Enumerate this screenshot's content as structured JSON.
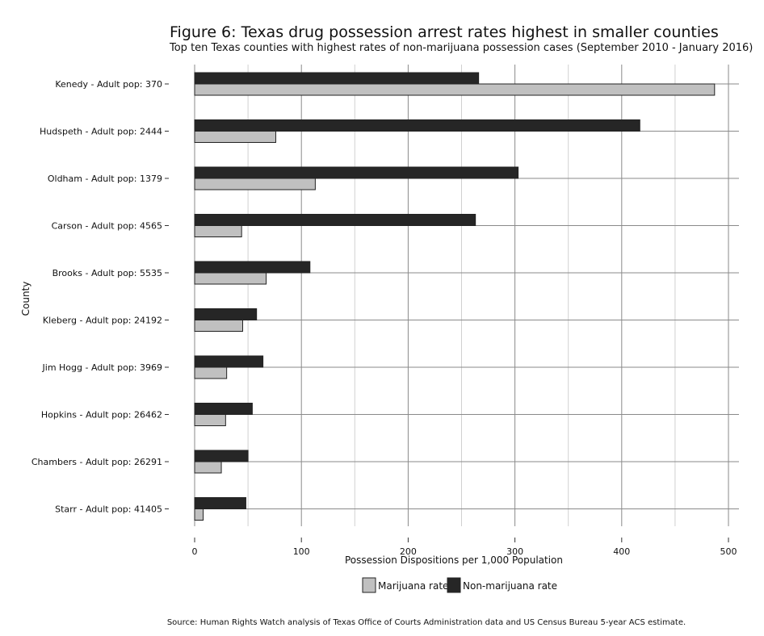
{
  "chart_data": {
    "type": "bar",
    "orientation": "horizontal",
    "title": "Figure 6: Texas drug possession arrest rates highest in smaller counties",
    "subtitle": "Top ten Texas counties with highest rates of non-marijuana possession cases (September 2010 - January 2016)",
    "xlabel": "Possession Dispositions per 1,000 Population",
    "ylabel": "County",
    "xlim": [
      0,
      500
    ],
    "xticks": [
      0,
      100,
      200,
      300,
      400,
      500
    ],
    "grid": true,
    "legend_position": "bottom",
    "categories": [
      "Kenedy - Adult pop: 370",
      "Hudspeth - Adult pop: 2444",
      "Oldham - Adult pop: 1379",
      "Carson - Adult pop: 4565",
      "Brooks - Adult pop: 5535",
      "Kleberg - Adult pop: 24192",
      "Jim Hogg - Adult pop: 3969",
      "Hopkins - Adult pop: 26462",
      "Chambers - Adult pop: 26291",
      "Starr - Adult pop: 41405"
    ],
    "series": [
      {
        "name": "Marijuana rate",
        "color": "#c0c0c0",
        "values": [
          487,
          76,
          113,
          44,
          67,
          45,
          30,
          29,
          25,
          8
        ]
      },
      {
        "name": "Non-marijuana rate",
        "color": "#262626",
        "values": [
          266,
          417,
          303,
          263,
          108,
          58,
          64,
          54,
          50,
          48
        ]
      }
    ],
    "source": "Source: Human Rights Watch analysis of Texas Office of Courts Administration data and US Census Bureau 5-year ACS estimate."
  }
}
